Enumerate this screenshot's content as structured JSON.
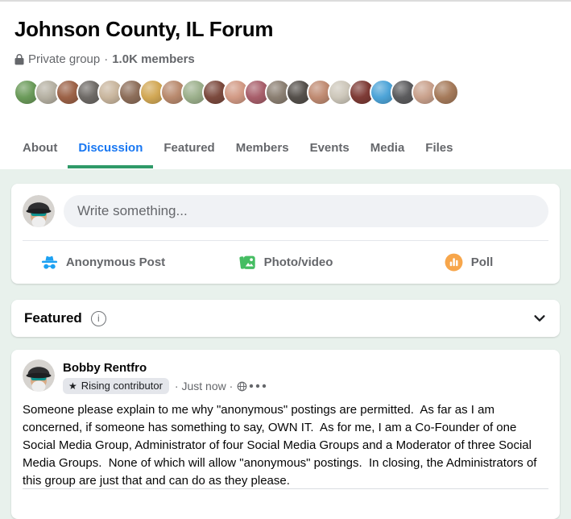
{
  "header": {
    "title": "Johnson County, IL Forum",
    "privacy_label": "Private group",
    "dot": "·",
    "members_count": "1.0K members"
  },
  "facepile": {
    "avatar_colors": [
      "#6b9b5a",
      "#b5b0a2",
      "#9c6247",
      "#6e6a66",
      "#c9b69e",
      "#8d6e5a",
      "#d2a855",
      "#b98a6e",
      "#9cb08c",
      "#7c4a3e",
      "#d29a85",
      "#a85f6b",
      "#8b7f72",
      "#55504b",
      "#c08b72",
      "#cdc7ba",
      "#7e3b36",
      "#4da4d8",
      "#5c5c5e",
      "#c9a18c",
      "#a67b5b"
    ]
  },
  "tabs": {
    "items": [
      {
        "label": "About",
        "active": false
      },
      {
        "label": "Discussion",
        "active": true
      },
      {
        "label": "Featured",
        "active": false
      },
      {
        "label": "Members",
        "active": false
      },
      {
        "label": "Events",
        "active": false
      },
      {
        "label": "Media",
        "active": false
      },
      {
        "label": "Files",
        "active": false
      }
    ]
  },
  "composer": {
    "placeholder": "Write something...",
    "actions": [
      {
        "label": "Anonymous Post",
        "icon": "incognito-icon",
        "color": "#1da1f2"
      },
      {
        "label": "Photo/video",
        "icon": "photo-icon",
        "color": "#45bd62"
      },
      {
        "label": "Poll",
        "icon": "poll-icon",
        "color": "#f7a64b"
      }
    ]
  },
  "featured": {
    "title": "Featured",
    "info_glyph": "i"
  },
  "post": {
    "author": "Bobby Rentfro",
    "badge_star": "★",
    "badge_label": "Rising contributor",
    "timestamp_text": "· Just now ·",
    "body": "Someone please explain to me why \"anonymous\" postings are permitted.  As far as I am concerned, if someone has something to say, OWN IT.  As for me, I am a Co-Founder of one Social Media Group, Administrator of four Social Media Groups and a Moderator of three Social Media Groups.  None of which will allow \"anonymous\" postings.  In closing, the Administrators of this group are just that and can do as they please."
  },
  "colors": {
    "active_tab_text": "#1877f2",
    "active_tab_underline": "#2f9a68",
    "feed_background": "#e8f1ec",
    "muted_text": "#65676b"
  }
}
